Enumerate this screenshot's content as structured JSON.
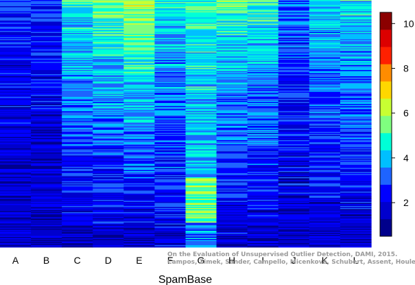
{
  "chart_data": {
    "type": "heatmap",
    "title": "",
    "xlabel": "SpamBase",
    "ylabel": "",
    "columns": [
      "A",
      "B",
      "C",
      "D",
      "E",
      "F",
      "G",
      "H",
      "I",
      "J",
      "K",
      "L"
    ],
    "column_level_profiles": [
      {
        "column": "A",
        "top": 2.6,
        "bottom": 1.5
      },
      {
        "column": "B",
        "top": 2.6,
        "bottom": 1.5
      },
      {
        "column": "C",
        "top": 4.8,
        "bottom": 1.6
      },
      {
        "column": "D",
        "top": 5.6,
        "bottom": 1.6
      },
      {
        "column": "E",
        "top": 6.2,
        "bottom": 1.6
      },
      {
        "column": "F",
        "top": 4.6,
        "bottom": 1.9
      },
      {
        "column": "G",
        "top": 4.8,
        "bottom": 3.6
      },
      {
        "column": "H",
        "top": 5.2,
        "bottom": 1.7
      },
      {
        "column": "I",
        "top": 5.0,
        "bottom": 1.7
      },
      {
        "column": "J",
        "top": 3.2,
        "bottom": 1.6
      },
      {
        "column": "K",
        "top": 4.2,
        "bottom": 1.6
      },
      {
        "column": "L",
        "top": 4.4,
        "bottom": 1.8
      }
    ],
    "colorbar": {
      "range": [
        0.5,
        10.5
      ],
      "ticks": [
        2,
        4,
        6,
        8,
        10
      ],
      "tick_labels": [
        "2",
        "4",
        "6",
        "8",
        "10"
      ],
      "colors": [
        "#00008B",
        "#0000CD",
        "#0000FF",
        "#1E64FF",
        "#00BFFF",
        "#00FFD7",
        "#7FFF7F",
        "#C8FF32",
        "#FFD700",
        "#FF8C00",
        "#FF2000",
        "#DC0000",
        "#8B0000"
      ]
    }
  },
  "watermark": {
    "line1": "On the Evaluation of Unsupervised Outlier Detection, DAMI, 2015.",
    "line2": "Campos, Zimek, Sander, Campello, Micenková, Schubert, Assent, Houle"
  }
}
